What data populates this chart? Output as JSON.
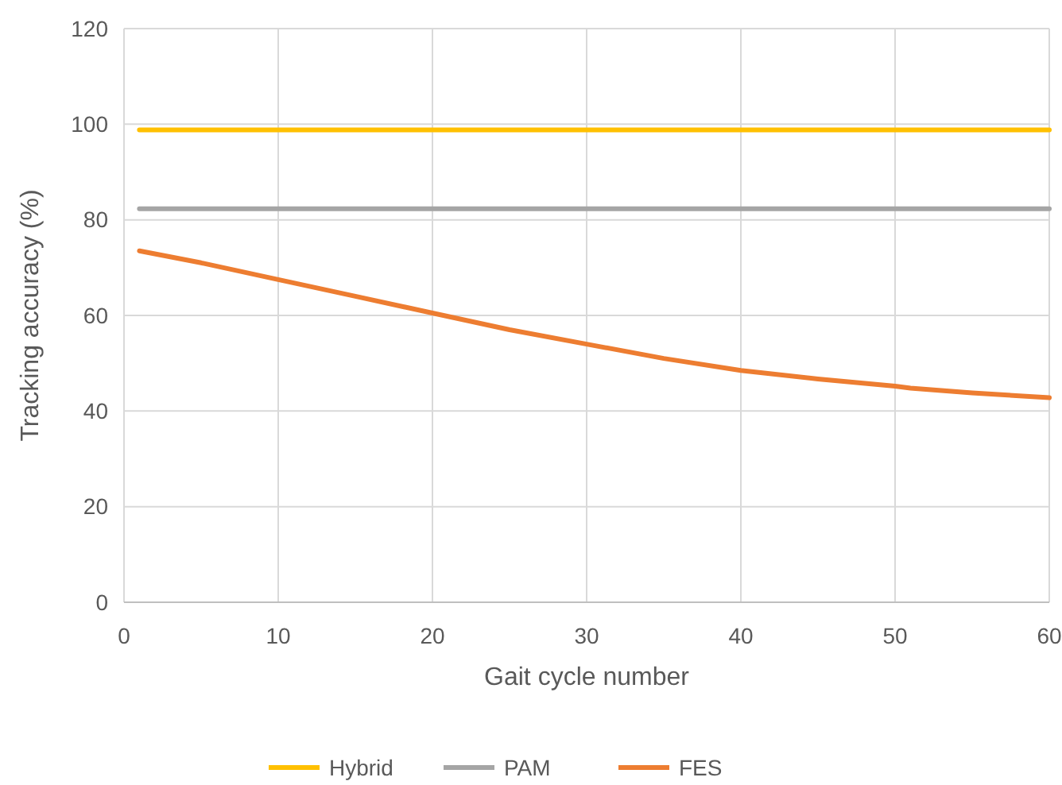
{
  "chart_data": {
    "type": "line",
    "xlabel": "Gait cycle number",
    "ylabel": "Tracking accuracy (%)",
    "xlim": [
      0,
      60
    ],
    "xticks": [
      0,
      10,
      20,
      30,
      40,
      50,
      60
    ],
    "ylim": [
      0,
      120
    ],
    "yticks": [
      0,
      20,
      40,
      60,
      80,
      100,
      120
    ],
    "grid": true,
    "legend": "bottom",
    "marker": "none",
    "line_style": "solid",
    "series": [
      {
        "name": "Hybrid",
        "color": "#ffc000",
        "x": [
          1,
          60
        ],
        "values": [
          98.8,
          98.8
        ]
      },
      {
        "name": "PAM",
        "color": "#a5a5a5",
        "x": [
          1,
          60
        ],
        "values": [
          82.3,
          82.3
        ]
      },
      {
        "name": "FES",
        "color": "#ed7d31",
        "x": [
          1,
          5,
          10,
          15,
          20,
          25,
          30,
          35,
          40,
          45,
          50,
          51,
          55,
          60
        ],
        "values": [
          73.5,
          71,
          67.5,
          64,
          60.5,
          57,
          54,
          51,
          48.5,
          46.7,
          45.2,
          44.8,
          43.8,
          42.8
        ]
      }
    ]
  }
}
